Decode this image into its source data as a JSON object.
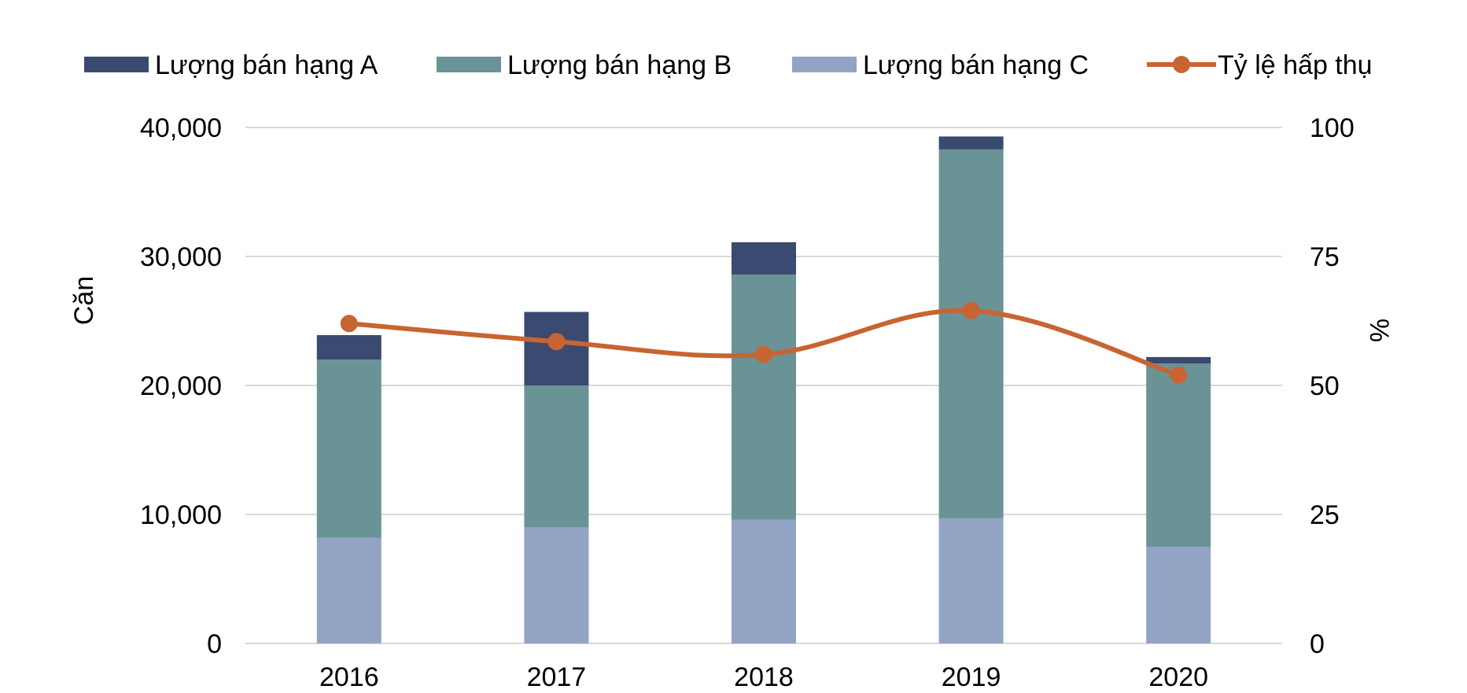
{
  "chart_data": {
    "type": "bar",
    "stacked": true,
    "categories": [
      "2016",
      "2017",
      "2018",
      "2019",
      "2020"
    ],
    "series": [
      {
        "name": "Lượng bán hạng C",
        "color": "#93a3c4",
        "values": [
          8200,
          9000,
          9600,
          9700,
          7500
        ]
      },
      {
        "name": "Lượng bán hạng B",
        "color": "#6a9396",
        "values": [
          13800,
          11000,
          19000,
          28600,
          14200
        ]
      },
      {
        "name": "Lượng bán hạng A",
        "color": "#3b4a70",
        "values": [
          1900,
          5700,
          2500,
          1000,
          500
        ]
      }
    ],
    "line_series": {
      "name": "Tỷ lệ hấp thụ",
      "color": "#c86432",
      "values": [
        62,
        58.5,
        56,
        64.5,
        52
      ]
    },
    "legend_order": [
      "Lượng bán hạng A",
      "Lượng bán hạng B",
      "Lượng bán hạng C",
      "Tỷ lệ hấp thụ"
    ],
    "ylabel": "Căn",
    "y2label": "%",
    "ylim": [
      0,
      40000
    ],
    "y2lim": [
      0,
      100
    ],
    "yticks": [
      "0",
      "10,000",
      "20,000",
      "30,000",
      "40,000"
    ],
    "y2ticks": [
      "0",
      "25",
      "50",
      "75",
      "100"
    ],
    "legend_position": "top",
    "grid": true
  }
}
